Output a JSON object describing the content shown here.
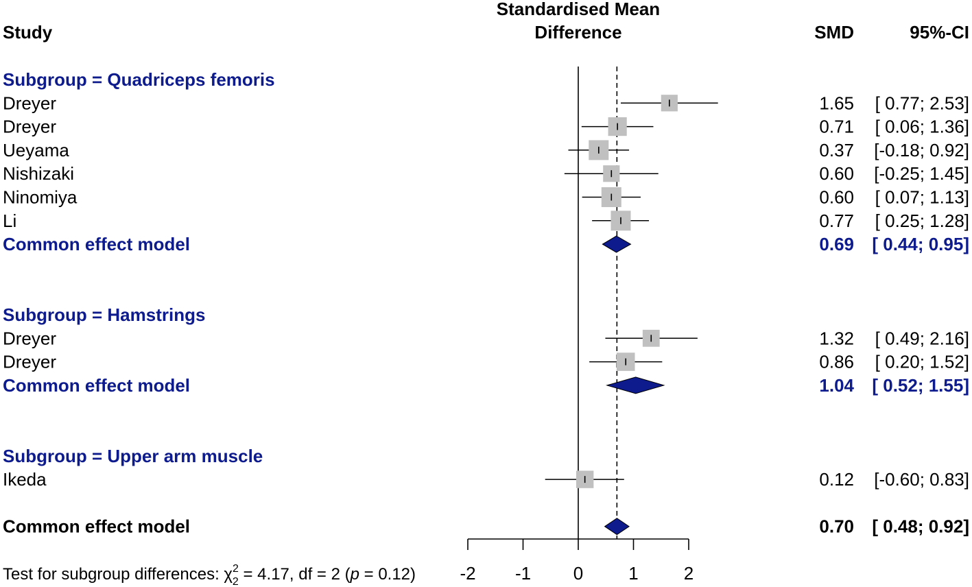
{
  "chart_data": {
    "type": "forest",
    "header": {
      "study": "Study",
      "title_line1": "Standardised Mean",
      "title_line2": "Difference",
      "smd": "SMD",
      "ci": "95%-CI"
    },
    "xlim": [
      -2,
      2
    ],
    "ticks": [
      -2,
      -1,
      0,
      1,
      2
    ],
    "tick_labels": [
      "-2",
      "-1",
      "0",
      "1",
      "2"
    ],
    "null_line": 0,
    "overall_line": 0.7,
    "colors": {
      "subgroup": "#0d1b8c",
      "diamond": "#0d1b8c",
      "square": "#c0c0c0"
    },
    "rows": [
      {
        "kind": "subgroup",
        "label": "Subgroup = Quadriceps femoris"
      },
      {
        "kind": "study",
        "label": "Dreyer",
        "smd": 1.65,
        "lo": 0.77,
        "hi": 2.53,
        "weight": 0.6,
        "smd_text": "1.65",
        "ci_text": "[ 0.77; 2.53]"
      },
      {
        "kind": "study",
        "label": "Dreyer",
        "smd": 0.71,
        "lo": 0.06,
        "hi": 1.36,
        "weight": 0.85,
        "smd_text": "0.71",
        "ci_text": "[ 0.06; 1.36]"
      },
      {
        "kind": "study",
        "label": "Ueyama",
        "smd": 0.37,
        "lo": -0.18,
        "hi": 0.92,
        "weight": 1.0,
        "smd_text": "0.37",
        "ci_text": "[-0.18; 0.92]"
      },
      {
        "kind": "study",
        "label": "Nishizaki",
        "smd": 0.6,
        "lo": -0.25,
        "hi": 1.45,
        "weight": 0.6,
        "smd_text": "0.60",
        "ci_text": "[-0.25; 1.45]"
      },
      {
        "kind": "study",
        "label": "Ninomiya",
        "smd": 0.6,
        "lo": 0.07,
        "hi": 1.13,
        "weight": 1.0,
        "smd_text": "0.60",
        "ci_text": "[ 0.07; 1.13]"
      },
      {
        "kind": "study",
        "label": "Li",
        "smd": 0.77,
        "lo": 0.25,
        "hi": 1.28,
        "weight": 1.0,
        "smd_text": "0.77",
        "ci_text": "[ 0.25; 1.28]"
      },
      {
        "kind": "pooled",
        "label": "Common effect model",
        "smd": 0.69,
        "lo": 0.44,
        "hi": 0.95,
        "smd_text": "0.69",
        "ci_text": "[ 0.44; 0.95]"
      },
      {
        "kind": "blank"
      },
      {
        "kind": "blank"
      },
      {
        "kind": "subgroup",
        "label": "Subgroup = Hamstrings"
      },
      {
        "kind": "study",
        "label": "Dreyer",
        "smd": 1.32,
        "lo": 0.49,
        "hi": 2.16,
        "weight": 0.65,
        "smd_text": "1.32",
        "ci_text": "[ 0.49; 2.16]"
      },
      {
        "kind": "study",
        "label": "Dreyer",
        "smd": 0.86,
        "lo": 0.2,
        "hi": 1.52,
        "weight": 0.8,
        "smd_text": "0.86",
        "ci_text": "[ 0.20; 1.52]"
      },
      {
        "kind": "pooled",
        "label": "Common effect model",
        "smd": 1.04,
        "lo": 0.52,
        "hi": 1.55,
        "smd_text": "1.04",
        "ci_text": "[ 0.52; 1.55]"
      },
      {
        "kind": "blank"
      },
      {
        "kind": "blank"
      },
      {
        "kind": "subgroup",
        "label": "Subgroup = Upper arm muscle"
      },
      {
        "kind": "study",
        "label": "Ikeda",
        "smd": 0.12,
        "lo": -0.6,
        "hi": 0.83,
        "weight": 0.7,
        "smd_text": "0.12",
        "ci_text": "[-0.60; 0.83]"
      },
      {
        "kind": "blank"
      },
      {
        "kind": "overall",
        "label": "Common effect model",
        "smd": 0.7,
        "lo": 0.48,
        "hi": 0.92,
        "smd_text": "0.70",
        "ci_text": "[ 0.48; 0.92]"
      }
    ],
    "footnote": {
      "prefix": "Test for subgroup differences: ",
      "chi": "χ",
      "chi_sup": "2",
      "chi_sub": "2",
      "stat": " = 4.17, df = 2 (",
      "p": "p",
      "p_value": " = 0.12)"
    }
  }
}
